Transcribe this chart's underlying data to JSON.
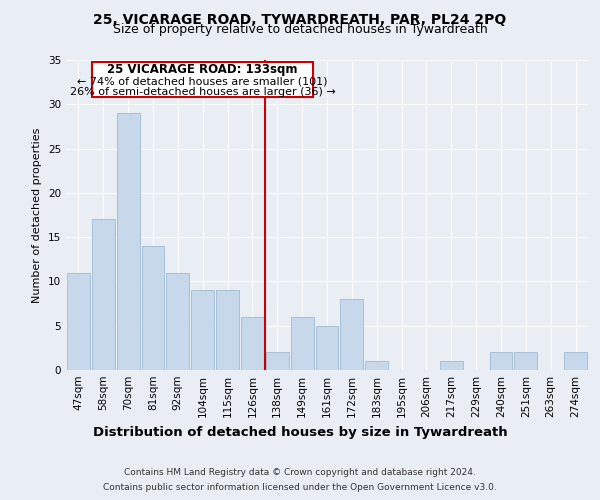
{
  "title": "25, VICARAGE ROAD, TYWARDREATH, PAR, PL24 2PQ",
  "subtitle": "Size of property relative to detached houses in Tywardreath",
  "xlabel": "Distribution of detached houses by size in Tywardreath",
  "ylabel": "Number of detached properties",
  "bar_labels": [
    "47sqm",
    "58sqm",
    "70sqm",
    "81sqm",
    "92sqm",
    "104sqm",
    "115sqm",
    "126sqm",
    "138sqm",
    "149sqm",
    "161sqm",
    "172sqm",
    "183sqm",
    "195sqm",
    "206sqm",
    "217sqm",
    "229sqm",
    "240sqm",
    "251sqm",
    "263sqm",
    "274sqm"
  ],
  "bar_values": [
    11,
    17,
    29,
    14,
    11,
    9,
    9,
    6,
    2,
    6,
    5,
    8,
    1,
    0,
    0,
    1,
    0,
    2,
    2,
    0,
    2
  ],
  "bar_color": "#c8d8eb",
  "bar_edge_color": "#a8c0d8",
  "vline_x": 7.5,
  "vline_color": "#cc0000",
  "ylim": [
    0,
    35
  ],
  "yticks": [
    0,
    5,
    10,
    15,
    20,
    25,
    30,
    35
  ],
  "annotation_title": "25 VICARAGE ROAD: 133sqm",
  "annotation_line1": "← 74% of detached houses are smaller (101)",
  "annotation_line2": "26% of semi-detached houses are larger (36) →",
  "annotation_box_color": "#ffffff",
  "annotation_box_edge": "#cc0000",
  "footer_line1": "Contains HM Land Registry data © Crown copyright and database right 2024.",
  "footer_line2": "Contains public sector information licensed under the Open Government Licence v3.0.",
  "background_color": "#e8eef4",
  "grid_color": "#ffffff",
  "title_fontsize": 10,
  "subtitle_fontsize": 9,
  "xlabel_fontsize": 9.5,
  "ylabel_fontsize": 8,
  "tick_fontsize": 7.5,
  "annotation_title_fontsize": 8.5,
  "annotation_fontsize": 8,
  "footer_fontsize": 6.5
}
